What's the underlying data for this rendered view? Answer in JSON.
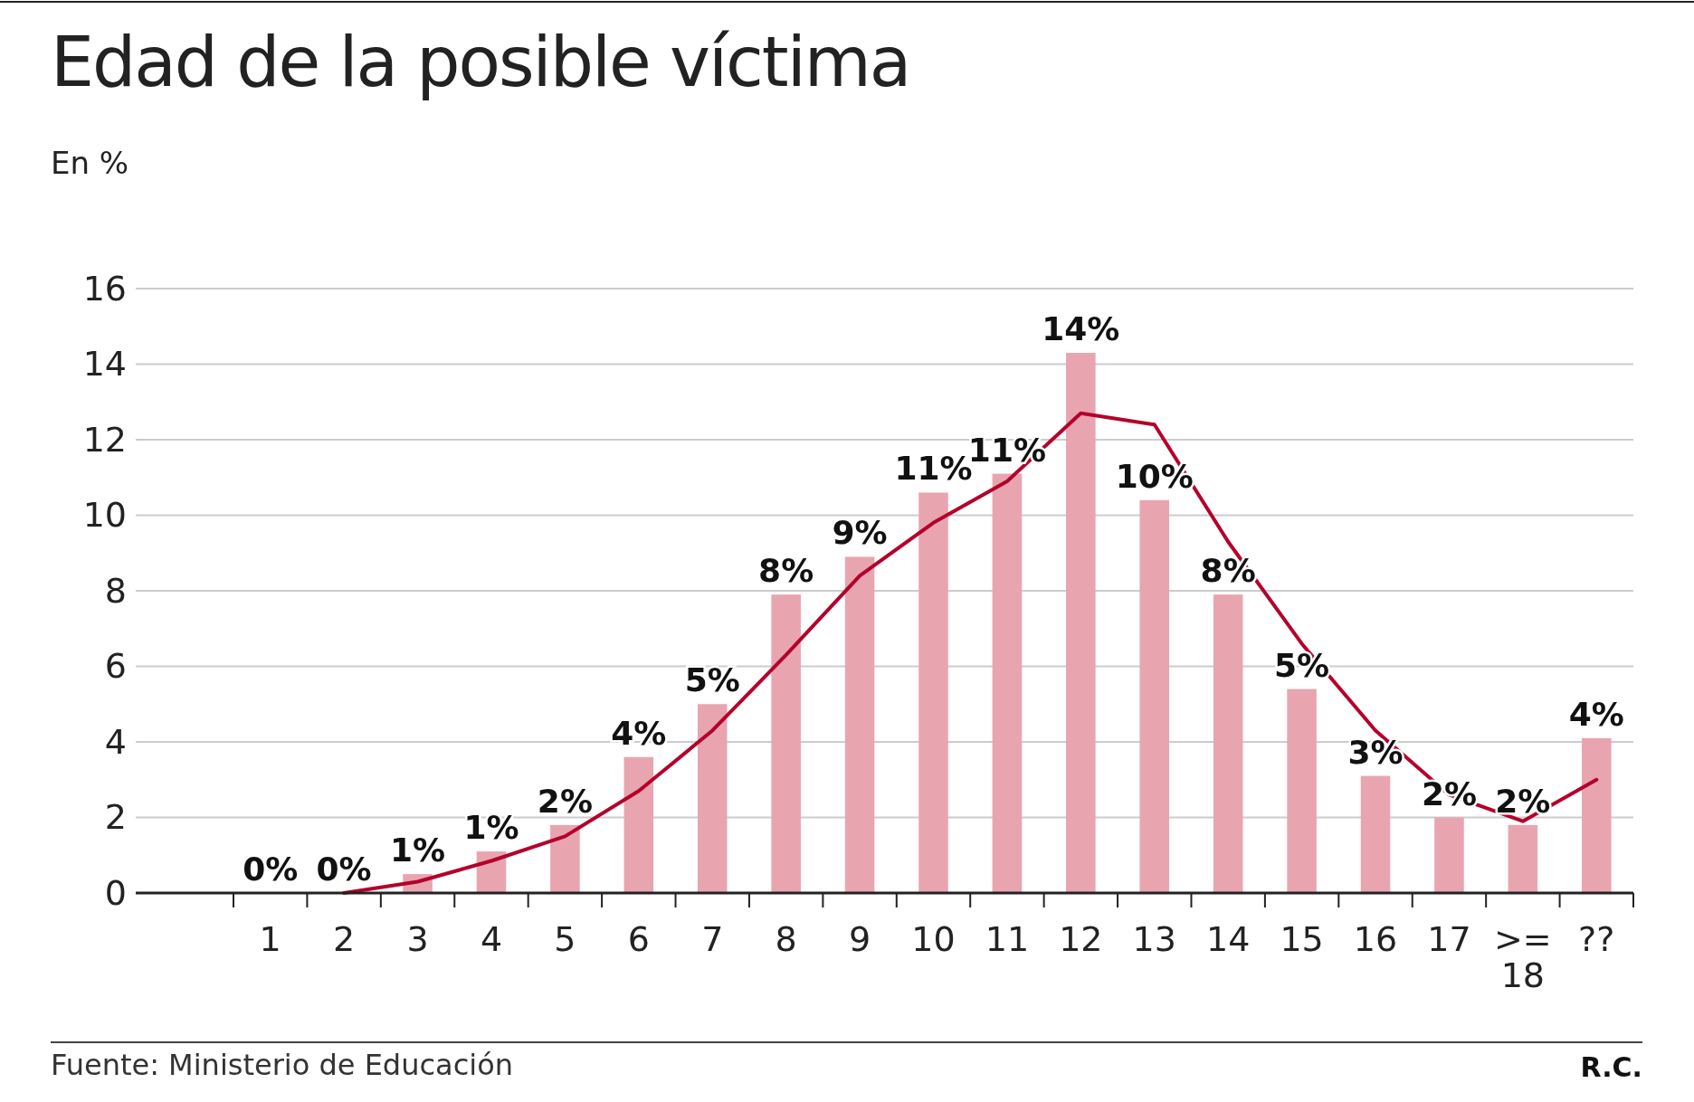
{
  "chart_data": {
    "type": "bar",
    "title": "Edad de la posible víctima",
    "ylabel": "En %",
    "categories": [
      "1",
      "2",
      "3",
      "4",
      "5",
      "6",
      "7",
      "8",
      "9",
      "10",
      "11",
      "12",
      "13",
      "14",
      "15",
      "16",
      "17",
      ">= 18",
      "??"
    ],
    "series": [
      {
        "color": "#e8a5b0",
        "values": [
          0,
          0,
          0.5,
          1.1,
          1.8,
          3.6,
          5.0,
          7.9,
          8.9,
          10.6,
          11.1,
          14.3,
          10.4,
          7.9,
          5.4,
          3.1,
          2.0,
          1.8,
          4.1
        ],
        "value_labels": [
          "0%",
          "0%",
          "1%",
          "1%",
          "2%",
          "4%",
          "5%",
          "8%",
          "9%",
          "11%",
          "11%",
          "14%",
          "10%",
          "8%",
          "5%",
          "3%",
          "2%",
          "2%",
          "4%"
        ]
      },
      {
        "type": "line",
        "color": "#b5002a",
        "values": [
          null,
          0,
          0.3,
          0.85,
          1.5,
          2.7,
          4.3,
          6.3,
          8.4,
          9.8,
          10.9,
          12.7,
          12.4,
          9.3,
          6.6,
          4.3,
          2.6,
          1.9,
          3.0
        ]
      }
    ],
    "ylim": [
      0,
      16
    ],
    "yticks": [
      0,
      2,
      4,
      6,
      8,
      10,
      12,
      14,
      16
    ],
    "grid": "y",
    "annotations": [
      "Fuente: Ministerio de Educación",
      "R.C."
    ]
  }
}
